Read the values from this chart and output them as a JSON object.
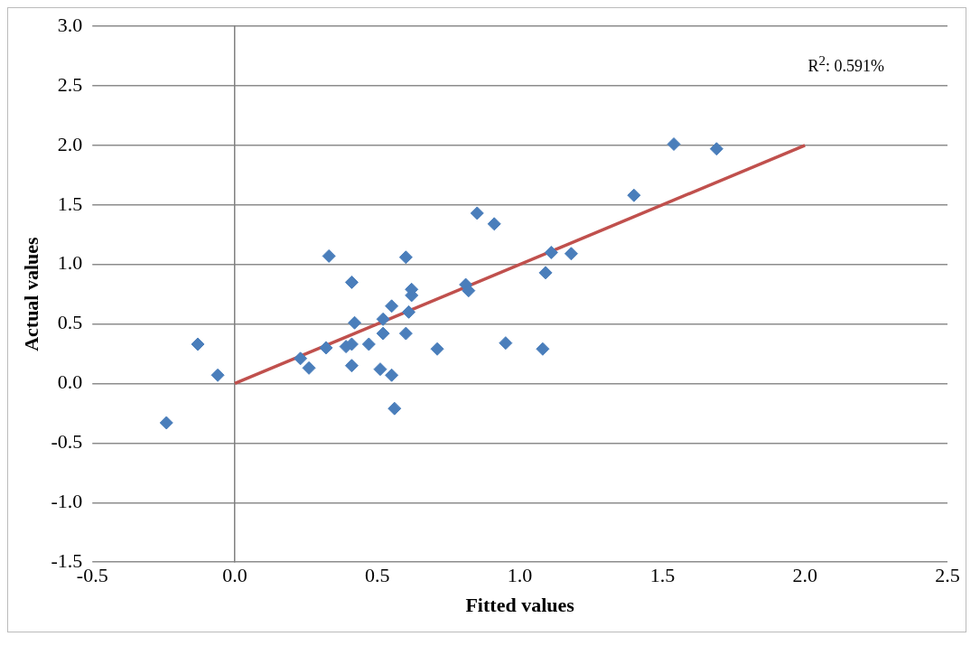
{
  "chart_data": {
    "type": "scatter",
    "xlabel": "Fitted values",
    "ylabel": "Actual values",
    "annotations": [
      "R$^{2}$: 0.591%"
    ],
    "xlim": [
      -0.5,
      2.5
    ],
    "xticks": [
      {
        "value": -0.5,
        "label": "-0.5"
      },
      {
        "value": 0,
        "label": "0.0"
      },
      {
        "value": 0.5,
        "label": "0.5"
      },
      {
        "value": 1,
        "label": "1.0"
      },
      {
        "value": 1.5,
        "label": "1.5"
      },
      {
        "value": 2,
        "label": "2.0"
      },
      {
        "value": 2.5,
        "label": "2.5"
      }
    ],
    "ylim": [
      -1.5,
      3
    ],
    "yticks": [
      {
        "value": -1.5,
        "label": "-1.5"
      },
      {
        "value": -1,
        "label": "-1.0"
      },
      {
        "value": -0.5,
        "label": "-0.5"
      },
      {
        "value": 0,
        "label": "0.0"
      },
      {
        "value": 0.5,
        "label": "0.5"
      },
      {
        "value": 1,
        "label": "1.0"
      },
      {
        "value": 1.5,
        "label": "1.5"
      },
      {
        "value": 2,
        "label": "2.0"
      },
      {
        "value": 2.5,
        "label": "2.5"
      },
      {
        "value": 3,
        "label": "3.0"
      }
    ],
    "grid": "y",
    "legend": false,
    "marker": "diamond",
    "series": [
      {
        "color": "#4a7ebb",
        "x": [
          -0.24,
          -0.13,
          -0.06,
          0.23,
          0.26,
          0.32,
          0.33,
          0.39,
          0.41,
          0.41,
          0.41,
          0.42,
          0.47,
          0.51,
          0.52,
          0.52,
          0.55,
          0.55,
          0.56,
          0.6,
          0.6,
          0.61,
          0.62,
          0.62,
          0.71,
          0.81,
          0.82,
          0.85,
          0.91,
          0.95,
          1.08,
          1.09,
          1.11,
          1.18,
          1.4,
          1.54,
          1.69
        ],
        "values": [
          -0.33,
          0.33,
          0.07,
          0.21,
          0.13,
          0.3,
          1.07,
          0.31,
          0.33,
          0.85,
          0.15,
          0.51,
          0.33,
          0.12,
          0.54,
          0.42,
          0.65,
          0.07,
          -0.21,
          1.06,
          0.42,
          0.6,
          0.74,
          0.79,
          0.29,
          0.83,
          0.78,
          1.43,
          1.34,
          0.34,
          0.29,
          0.93,
          1.1,
          1.09,
          1.58,
          2.01,
          1.97
        ]
      },
      {
        "type": "line",
        "marker": "none",
        "color": "#c0504d",
        "x": [
          0,
          2.0
        ],
        "values": [
          0,
          2.0
        ]
      }
    ]
  }
}
